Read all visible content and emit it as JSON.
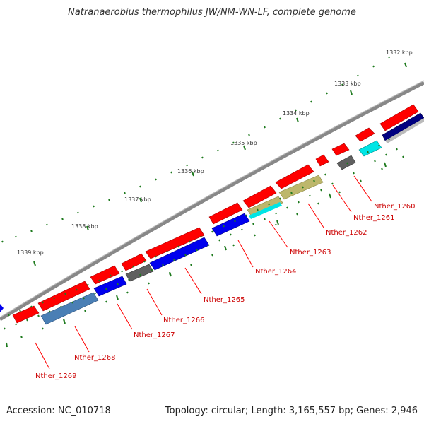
{
  "title": "Natranaerobius thermophilus JW/NM-WN-LF, complete genome",
  "footer": {
    "accession": "Accession: NC_010718",
    "topology": "Topology: circular; Length: 3,165,557 bp; Genes: 2,946"
  },
  "scale_labels": [
    "1332 kbp",
    "1333 kbp",
    "1334 kbp",
    "1335 kbp",
    "1336 kbp",
    "1337 kbp",
    "1338 kbp",
    "1339 kbp"
  ],
  "gene_labels": [
    "Nther_1260",
    "Nther_1261",
    "Nther_1262",
    "Nther_1263",
    "Nther_1264",
    "Nther_1265",
    "Nther_1266",
    "Nther_1267",
    "Nther_1268",
    "Nther_1269"
  ],
  "colors": {
    "forward": "#ff0000",
    "reverse_primary": "#0000ee",
    "cyan": "#00e5e5",
    "gray": "#606060",
    "khaki": "#bdb76b",
    "steelblue": "#4a7fb5",
    "navy": "#000080",
    "backbone": "#888888",
    "tick": "#1e7a1e",
    "label": "#cc0000"
  }
}
